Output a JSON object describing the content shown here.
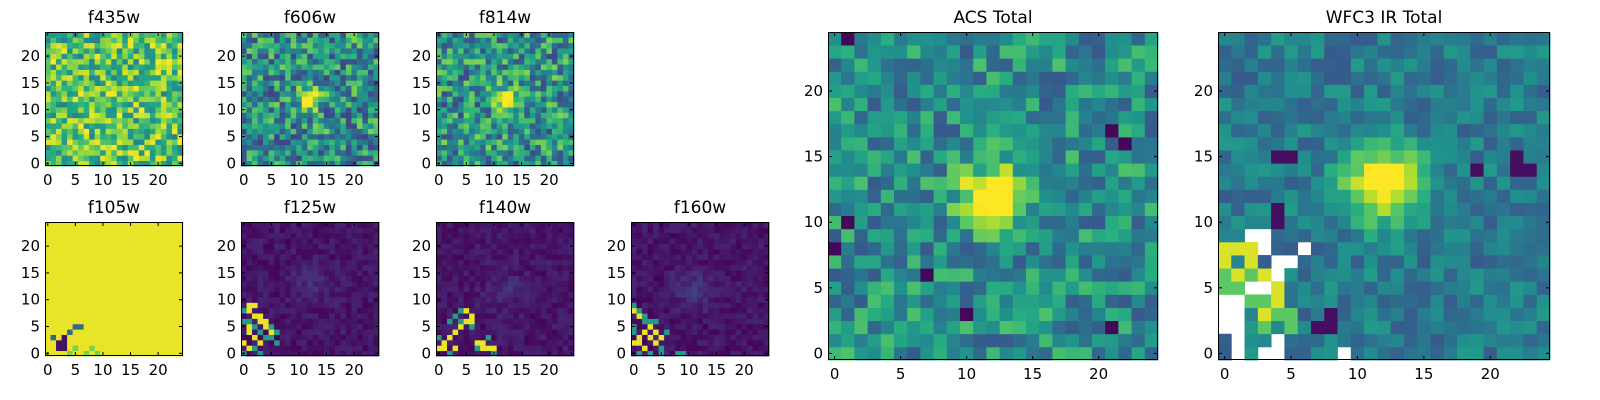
{
  "figure": {
    "background": "#ffffff",
    "colormap": "viridis"
  },
  "chart_data": [
    {
      "type": "heatmap",
      "title": "f435w",
      "grid_size": 25,
      "xlim": [
        0,
        24
      ],
      "ylim": [
        0,
        24
      ],
      "x_ticks": [
        0,
        5,
        10,
        15,
        20
      ],
      "y_ticks": [
        0,
        5,
        10,
        15,
        20
      ],
      "pattern": "noise",
      "noise_mean": 0.72,
      "noise_spread": 0.28,
      "seed": 11,
      "blobs": [],
      "fill_regions": [],
      "blank_cells": [],
      "grid": false
    },
    {
      "type": "heatmap",
      "title": "f606w",
      "grid_size": 25,
      "xlim": [
        0,
        24
      ],
      "ylim": [
        0,
        24
      ],
      "x_ticks": [
        0,
        5,
        10,
        15,
        20
      ],
      "y_ticks": [
        0,
        5,
        10,
        15,
        20
      ],
      "pattern": "noise",
      "noise_mean": 0.5,
      "noise_spread": 0.3,
      "seed": 23,
      "blobs": [
        {
          "x": 12,
          "y": 12,
          "amp": 0.8,
          "sigma": 1.3
        }
      ],
      "fill_regions": [],
      "blank_cells": [],
      "grid": false
    },
    {
      "type": "heatmap",
      "title": "f814w",
      "grid_size": 25,
      "xlim": [
        0,
        24
      ],
      "ylim": [
        0,
        24
      ],
      "x_ticks": [
        0,
        5,
        10,
        15,
        20
      ],
      "y_ticks": [
        0,
        5,
        10,
        15,
        20
      ],
      "pattern": "noise",
      "noise_mean": 0.52,
      "noise_spread": 0.3,
      "seed": 37,
      "blobs": [
        {
          "x": 12,
          "y": 12,
          "amp": 0.8,
          "sigma": 1.3
        }
      ],
      "fill_regions": [],
      "blank_cells": [],
      "grid": false
    },
    {
      "type": "heatmap",
      "title": "f105w",
      "grid_size": 25,
      "xlim": [
        0,
        24
      ],
      "ylim": [
        0,
        24
      ],
      "x_ticks": [
        0,
        5,
        10,
        15,
        20
      ],
      "y_ticks": [
        0,
        5,
        10,
        15,
        20
      ],
      "pattern": "flat",
      "flat_value": 0.97,
      "seed": 41,
      "blobs": [],
      "fill_regions": [
        {
          "value": 0.05,
          "cells": [
            [
              2,
              1
            ],
            [
              2,
              2
            ],
            [
              3,
              1
            ],
            [
              3,
              2
            ],
            [
              3,
              3
            ]
          ]
        },
        {
          "value": 0.35,
          "cells": [
            [
              4,
              4
            ],
            [
              5,
              5
            ],
            [
              6,
              5
            ],
            [
              1,
              3
            ]
          ]
        },
        {
          "value": 0.8,
          "cells": [
            [
              4,
              0
            ],
            [
              5,
              1
            ],
            [
              7,
              0
            ],
            [
              8,
              1
            ],
            [
              9,
              0
            ]
          ]
        }
      ],
      "blank_cells": [],
      "grid": false
    },
    {
      "type": "heatmap",
      "title": "f125w",
      "grid_size": 25,
      "xlim": [
        0,
        24
      ],
      "ylim": [
        0,
        24
      ],
      "x_ticks": [
        0,
        5,
        10,
        15,
        20
      ],
      "y_ticks": [
        0,
        5,
        10,
        15,
        20
      ],
      "pattern": "dark",
      "noise_mean": 0.06,
      "noise_spread": 0.05,
      "seed": 53,
      "blobs": [
        {
          "x": 12,
          "y": 13,
          "amp": 0.06,
          "sigma": 2.5
        }
      ],
      "fill_regions": [
        {
          "value": 0.97,
          "cells": [
            [
              1,
              9
            ],
            [
              2,
              9
            ],
            [
              1,
              8
            ],
            [
              2,
              7
            ],
            [
              3,
              7
            ],
            [
              3,
              6
            ],
            [
              4,
              6
            ],
            [
              4,
              5
            ],
            [
              5,
              4
            ],
            [
              1,
              5
            ],
            [
              1,
              4
            ],
            [
              2,
              3
            ],
            [
              3,
              2
            ],
            [
              1,
              1
            ],
            [
              0,
              2
            ]
          ]
        },
        {
          "value": 0.55,
          "cells": [
            [
              0,
              8
            ],
            [
              0,
              6
            ],
            [
              1,
              6
            ],
            [
              2,
              5
            ],
            [
              3,
              4
            ],
            [
              4,
              3
            ],
            [
              5,
              3
            ],
            [
              6,
              2
            ],
            [
              0,
              0
            ],
            [
              2,
              1
            ],
            [
              3,
              0
            ],
            [
              5,
              5
            ],
            [
              6,
              4
            ]
          ]
        }
      ],
      "blank_cells": [],
      "grid": false
    },
    {
      "type": "heatmap",
      "title": "f140w",
      "grid_size": 25,
      "xlim": [
        0,
        24
      ],
      "ylim": [
        0,
        24
      ],
      "x_ticks": [
        0,
        5,
        10,
        15,
        20
      ],
      "y_ticks": [
        0,
        5,
        10,
        15,
        20
      ],
      "pattern": "dark",
      "noise_mean": 0.06,
      "noise_spread": 0.05,
      "seed": 61,
      "blobs": [
        {
          "x": 12,
          "y": 12,
          "amp": 0.06,
          "sigma": 2.5
        }
      ],
      "fill_regions": [
        {
          "value": 0.97,
          "cells": [
            [
              0,
              1
            ],
            [
              1,
              2
            ],
            [
              1,
              1
            ],
            [
              2,
              3
            ],
            [
              3,
              4
            ],
            [
              4,
              5
            ],
            [
              5,
              6
            ],
            [
              6,
              7
            ],
            [
              7,
              2
            ],
            [
              8,
              1
            ],
            [
              8,
              2
            ],
            [
              9,
              1
            ],
            [
              10,
              1
            ],
            [
              3,
              1
            ],
            [
              5,
              8
            ],
            [
              6,
              6
            ]
          ]
        },
        {
          "value": 0.55,
          "cells": [
            [
              0,
              3
            ],
            [
              2,
              6
            ],
            [
              3,
              7
            ],
            [
              4,
              6
            ],
            [
              7,
              1
            ],
            [
              9,
              3
            ],
            [
              10,
              0
            ],
            [
              2,
              0
            ],
            [
              4,
              8
            ],
            [
              6,
              5
            ]
          ]
        }
      ],
      "blank_cells": [],
      "grid": false
    },
    {
      "type": "heatmap",
      "title": "f160w",
      "grid_size": 25,
      "xlim": [
        0,
        24
      ],
      "ylim": [
        0,
        24
      ],
      "x_ticks": [
        0,
        5,
        10,
        15,
        20
      ],
      "y_ticks": [
        0,
        5,
        10,
        15,
        20
      ],
      "pattern": "dark",
      "noise_mean": 0.06,
      "noise_spread": 0.05,
      "seed": 71,
      "blobs": [
        {
          "x": 11,
          "y": 12,
          "amp": 0.1,
          "sigma": 2.5
        }
      ],
      "fill_regions": [
        {
          "value": 0.97,
          "cells": [
            [
              0,
              2
            ],
            [
              1,
              2
            ],
            [
              1,
              3
            ],
            [
              2,
              4
            ],
            [
              3,
              5
            ],
            [
              3,
              3
            ],
            [
              4,
              4
            ],
            [
              4,
              2
            ],
            [
              5,
              3
            ],
            [
              2,
              1
            ],
            [
              0,
              8
            ],
            [
              1,
              7
            ]
          ]
        },
        {
          "value": 0.55,
          "cells": [
            [
              0,
              9
            ],
            [
              1,
              8
            ],
            [
              2,
              7
            ],
            [
              2,
              6
            ],
            [
              3,
              6
            ],
            [
              4,
              6
            ],
            [
              0,
              5
            ],
            [
              0,
              4
            ],
            [
              1,
              0
            ],
            [
              3,
              0
            ],
            [
              5,
              1
            ],
            [
              5,
              0
            ],
            [
              8,
              0
            ],
            [
              9,
              0
            ],
            [
              6,
              4
            ]
          ]
        }
      ],
      "blank_cells": [],
      "grid": false
    },
    {
      "type": "heatmap",
      "title": "ACS Total",
      "grid_size": 25,
      "xlim": [
        0,
        24
      ],
      "ylim": [
        0,
        24
      ],
      "x_ticks": [
        0,
        5,
        10,
        15,
        20
      ],
      "y_ticks": [
        0,
        5,
        10,
        15,
        20
      ],
      "pattern": "noise",
      "noise_mean": 0.5,
      "noise_spread": 0.22,
      "seed": 83,
      "blobs": [
        {
          "x": 12,
          "y": 12,
          "amp": 0.85,
          "sigma": 1.5
        }
      ],
      "fill_regions": [
        {
          "value": 0.02,
          "cells": [
            [
              1,
              24
            ],
            [
              21,
              17
            ],
            [
              0,
              8
            ],
            [
              1,
              10
            ],
            [
              22,
              16
            ],
            [
              7,
              6
            ],
            [
              21,
              2
            ],
            [
              10,
              3
            ]
          ]
        }
      ],
      "blank_cells": [],
      "grid": false
    },
    {
      "type": "heatmap",
      "title": "WFC3 IR Total",
      "grid_size": 25,
      "xlim": [
        0,
        24
      ],
      "ylim": [
        0,
        24
      ],
      "x_ticks": [
        0,
        5,
        10,
        15,
        20
      ],
      "y_ticks": [
        0,
        5,
        10,
        15,
        20
      ],
      "pattern": "smooth",
      "noise_mean": 0.42,
      "noise_spread": 0.16,
      "seed": 97,
      "blobs": [
        {
          "x": 12,
          "y": 13,
          "amp": 0.75,
          "sigma": 2.0
        }
      ],
      "fill_regions": [
        {
          "value": 0.04,
          "cells": [
            [
              4,
              15
            ],
            [
              5,
              15
            ],
            [
              22,
              15
            ],
            [
              23,
              14
            ],
            [
              22,
              14
            ],
            [
              19,
              14
            ],
            [
              4,
              10
            ],
            [
              4,
              11
            ],
            [
              8,
              2
            ],
            [
              8,
              3
            ],
            [
              7,
              2
            ]
          ]
        },
        {
          "value": 0.95,
          "cells": [
            [
              0,
              7
            ],
            [
              0,
              8
            ],
            [
              1,
              8
            ],
            [
              2,
              8
            ],
            [
              2,
              7
            ],
            [
              1,
              6
            ],
            [
              3,
              6
            ],
            [
              4,
              5
            ],
            [
              4,
              4
            ],
            [
              3,
              3
            ]
          ]
        },
        {
          "value": 0.75,
          "cells": [
            [
              0,
              6
            ],
            [
              0,
              5
            ],
            [
              1,
              5
            ],
            [
              2,
              6
            ],
            [
              3,
              4
            ],
            [
              4,
              3
            ],
            [
              5,
              3
            ],
            [
              5,
              2
            ],
            [
              3,
              2
            ],
            [
              2,
              4
            ]
          ]
        }
      ],
      "blank_cells": [
        [
          1,
          0
        ],
        [
          1,
          1
        ],
        [
          0,
          2
        ],
        [
          1,
          2
        ],
        [
          0,
          3
        ],
        [
          1,
          3
        ],
        [
          0,
          4
        ],
        [
          1,
          4
        ],
        [
          2,
          5
        ],
        [
          3,
          5
        ],
        [
          4,
          6
        ],
        [
          4,
          7
        ],
        [
          5,
          7
        ],
        [
          3,
          8
        ],
        [
          3,
          9
        ],
        [
          2,
          9
        ],
        [
          6,
          8
        ],
        [
          4,
          0
        ],
        [
          4,
          1
        ],
        [
          3,
          0
        ],
        [
          9,
          0
        ]
      ],
      "grid": false
    }
  ]
}
